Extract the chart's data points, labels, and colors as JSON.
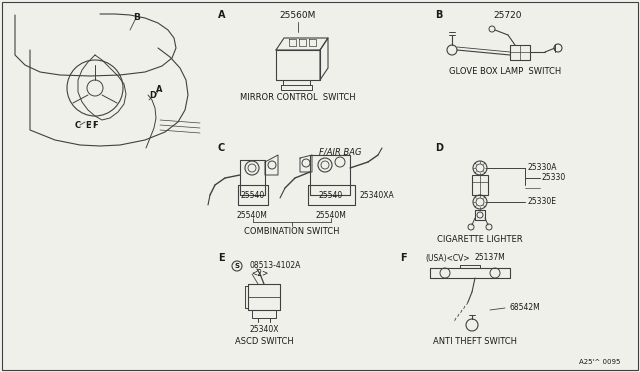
{
  "bg_color": "#f0f0eb",
  "line_color": "#404040",
  "text_color": "#1a1a1a",
  "page_code": "A25'^ 0095",
  "sections": {
    "A_label": "A",
    "A_part": "25560M",
    "A_name": "MIRROR CONTROL  SWITCH",
    "B_label": "B",
    "B_part": "25720",
    "B_name": "GLOVE BOX LAMP  SWITCH",
    "C_label": "C",
    "C_part1": "25540M",
    "C_part2": "25540M",
    "C_part3": "25540",
    "C_part4": "25340XA",
    "C_fab": "F/AIR BAG",
    "C_name": "COMBINATION SWITCH",
    "D_label": "D",
    "D_part1": "25330A",
    "D_part2": "25330",
    "D_part3": "25330E",
    "D_name": "CIGARETTE LIGHTER",
    "E_label": "E",
    "E_s": "S",
    "E_partnum": "08513-4102A",
    "E_sub": "<2>",
    "E_part": "25340X",
    "E_name": "ASCD SWITCH",
    "F_label": "F",
    "F_qual": "(USA)<CV>",
    "F_part1": "25137M",
    "F_part2": "68542M",
    "F_name": "ANTI THEFT SWITCH"
  },
  "layout": {
    "figw": 6.4,
    "figh": 3.72,
    "dpi": 100
  }
}
